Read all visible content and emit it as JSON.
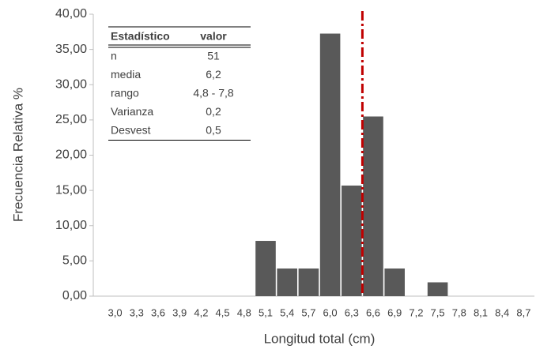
{
  "chart_data": {
    "type": "bar",
    "ylabel": "Frecuencia Relativa %",
    "xlabel": "Longitud total (cm)",
    "categories": [
      "3,0",
      "3,3",
      "3,6",
      "3,9",
      "4,2",
      "4,5",
      "4,8",
      "5,1",
      "5,4",
      "5,7",
      "6,0",
      "6,3",
      "6,6",
      "6,9",
      "7,2",
      "7,5",
      "7,8",
      "8,1",
      "8,4",
      "8,7"
    ],
    "values": [
      0,
      0,
      0,
      0,
      0,
      0,
      0,
      7.84,
      3.92,
      3.92,
      37.25,
      15.69,
      25.49,
      3.92,
      0,
      1.96,
      0,
      0,
      0,
      0
    ],
    "color": "#595959",
    "ylim": [
      0,
      40
    ],
    "yticks": [
      {
        "value": 0,
        "label": "0,00"
      },
      {
        "value": 5,
        "label": "5,00"
      },
      {
        "value": 10,
        "label": "10,00"
      },
      {
        "value": 15,
        "label": "15,00"
      },
      {
        "value": 20,
        "label": "20,00"
      },
      {
        "value": 25,
        "label": "25,00"
      },
      {
        "value": 30,
        "label": "30,00"
      },
      {
        "value": 35,
        "label": "35,00"
      },
      {
        "value": 40,
        "label": "40,00"
      }
    ],
    "grid": false,
    "reference_line": {
      "between": [
        "6,3",
        "6,6"
      ],
      "color": "#c00000"
    },
    "stats_table": {
      "columns": [
        "Estadístico",
        "valor"
      ],
      "rows": [
        [
          "n",
          "51"
        ],
        [
          "media",
          "6,2"
        ],
        [
          "rango",
          "4,8 - 7,8"
        ],
        [
          "Varianza",
          "0,2"
        ],
        [
          "Desvest",
          "0,5"
        ]
      ]
    }
  }
}
